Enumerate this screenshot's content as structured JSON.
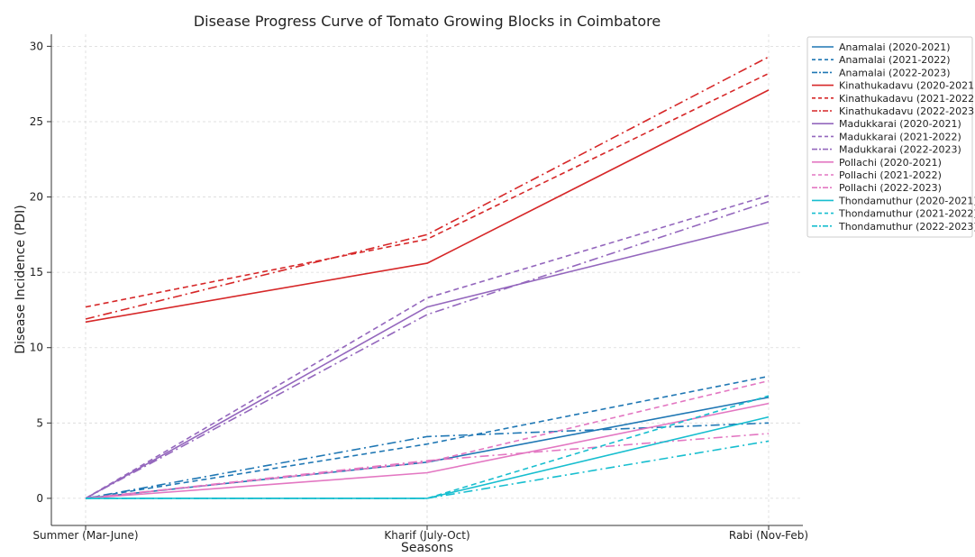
{
  "chart_data": {
    "type": "line",
    "title": "Disease Progress Curve of Tomato Growing Blocks in Coimbatore",
    "xlabel": "Seasons",
    "ylabel": "Disease Incidence (PDI)",
    "categories": [
      "Summer (Mar-June)",
      "Kharif (July-Oct)",
      "Rabi (Nov-Feb)"
    ],
    "ylim": [
      -1.8,
      30.8
    ],
    "yticks": [
      0,
      5,
      10,
      15,
      20,
      25,
      30
    ],
    "grid": true,
    "legend_position": "outside-right",
    "series": [
      {
        "name": "Anamalai (2020-2021)",
        "color": "#1f77b4",
        "dash": "solid",
        "values": [
          0,
          2.4,
          6.7
        ]
      },
      {
        "name": "Anamalai (2021-2022)",
        "color": "#1f77b4",
        "dash": "dashed",
        "values": [
          0,
          3.6,
          8.1
        ]
      },
      {
        "name": "Anamalai (2022-2023)",
        "color": "#1f77b4",
        "dash": "dashdot",
        "values": [
          0,
          4.1,
          5.0
        ]
      },
      {
        "name": "Kinathukadavu (2020-2021)",
        "color": "#d62728",
        "dash": "solid",
        "values": [
          11.7,
          15.6,
          27.1
        ]
      },
      {
        "name": "Kinathukadavu (2021-2022)",
        "color": "#d62728",
        "dash": "dashed",
        "values": [
          12.7,
          17.2,
          28.2
        ]
      },
      {
        "name": "Kinathukadavu (2022-2023)",
        "color": "#d62728",
        "dash": "dashdot",
        "values": [
          11.9,
          17.5,
          29.3
        ]
      },
      {
        "name": "Madukkarai (2020-2021)",
        "color": "#9467bd",
        "dash": "solid",
        "values": [
          0,
          12.7,
          18.3
        ]
      },
      {
        "name": "Madukkarai (2021-2022)",
        "color": "#9467bd",
        "dash": "dashed",
        "values": [
          0,
          13.3,
          20.1
        ]
      },
      {
        "name": "Madukkarai (2022-2023)",
        "color": "#9467bd",
        "dash": "dashdot",
        "values": [
          0,
          12.2,
          19.7
        ]
      },
      {
        "name": "Pollachi (2020-2021)",
        "color": "#e377c2",
        "dash": "solid",
        "values": [
          0,
          1.7,
          6.3
        ]
      },
      {
        "name": "Pollachi (2021-2022)",
        "color": "#e377c2",
        "dash": "dashed",
        "values": [
          0,
          2.4,
          7.8
        ]
      },
      {
        "name": "Pollachi (2022-2023)",
        "color": "#e377c2",
        "dash": "dashdot",
        "values": [
          0,
          2.5,
          4.3
        ]
      },
      {
        "name": "Thondamuthur (2020-2021)",
        "color": "#17becf",
        "dash": "solid",
        "values": [
          0,
          0,
          5.4
        ]
      },
      {
        "name": "Thondamuthur (2021-2022)",
        "color": "#17becf",
        "dash": "dashed",
        "values": [
          0,
          0,
          6.8
        ]
      },
      {
        "name": "Thondamuthur (2022-2023)",
        "color": "#17becf",
        "dash": "dashdot",
        "values": [
          0,
          0,
          3.8
        ]
      }
    ]
  }
}
